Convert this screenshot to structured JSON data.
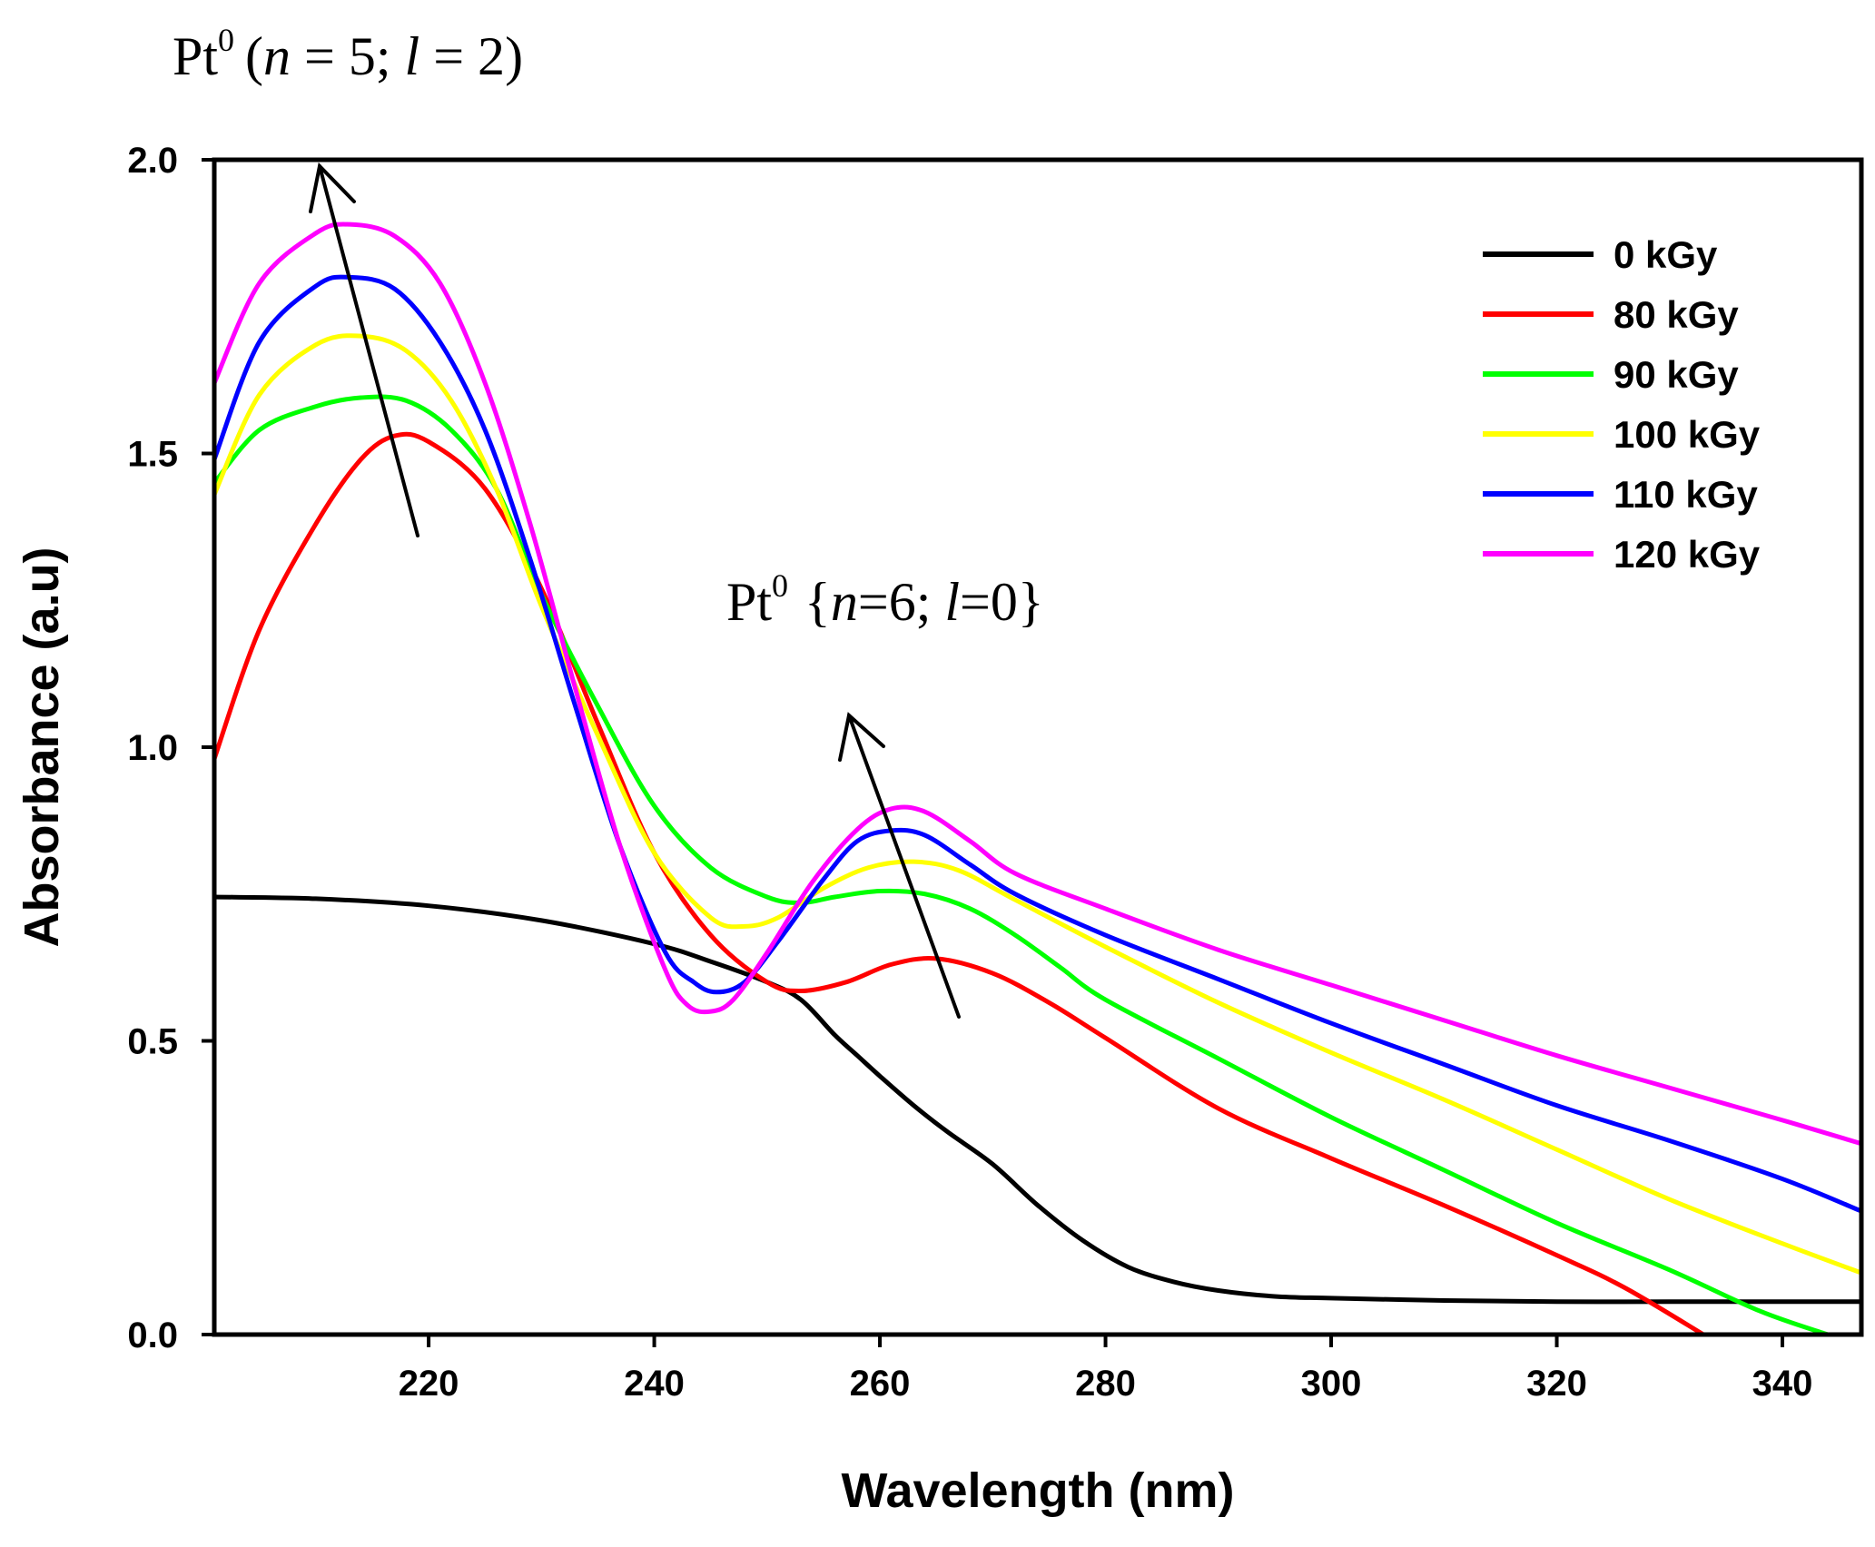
{
  "chart_data": {
    "type": "line",
    "title": "",
    "xlabel": "Wavelength (nm)",
    "ylabel": "Absorbance (a.u)",
    "xlim": [
      201,
      347
    ],
    "ylim": [
      0,
      2
    ],
    "xticks": [
      220,
      240,
      260,
      280,
      300,
      320,
      340
    ],
    "xtick_labels": [
      "220",
      "240",
      "260",
      "280",
      "300",
      "320",
      "340"
    ],
    "yticks": [
      0,
      0.5,
      1,
      1.5,
      2
    ],
    "ytick_labels": [
      "0.0",
      "0.5",
      "1.0",
      "1.5",
      "2.0"
    ],
    "grid": false,
    "legend_position": "top-right",
    "series": [
      {
        "name": "0 kGy",
        "color": "#000000",
        "points": [
          [
            201,
            0.745
          ],
          [
            210,
            0.742
          ],
          [
            220,
            0.73
          ],
          [
            230,
            0.705
          ],
          [
            240,
            0.665
          ],
          [
            245,
            0.635
          ],
          [
            250,
            0.6
          ],
          [
            253,
            0.57
          ],
          [
            256,
            0.51
          ],
          [
            258,
            0.475
          ],
          [
            260,
            0.44
          ],
          [
            263,
            0.39
          ],
          [
            266,
            0.345
          ],
          [
            270,
            0.29
          ],
          [
            274,
            0.22
          ],
          [
            278,
            0.16
          ],
          [
            282,
            0.115
          ],
          [
            286,
            0.09
          ],
          [
            290,
            0.075
          ],
          [
            295,
            0.065
          ],
          [
            300,
            0.062
          ],
          [
            310,
            0.058
          ],
          [
            320,
            0.056
          ],
          [
            330,
            0.056
          ],
          [
            340,
            0.056
          ],
          [
            347,
            0.056
          ]
        ]
      },
      {
        "name": "80 kGy",
        "color": "#ff0000",
        "points": [
          [
            201,
            0.98
          ],
          [
            205,
            1.2
          ],
          [
            210,
            1.38
          ],
          [
            214,
            1.49
          ],
          [
            217,
            1.53
          ],
          [
            220,
            1.52
          ],
          [
            225,
            1.44
          ],
          [
            230,
            1.27
          ],
          [
            235,
            1.04
          ],
          [
            240,
            0.82
          ],
          [
            245,
            0.68
          ],
          [
            250,
            0.6
          ],
          [
            253,
            0.585
          ],
          [
            257,
            0.6
          ],
          [
            261,
            0.63
          ],
          [
            265,
            0.64
          ],
          [
            270,
            0.615
          ],
          [
            275,
            0.565
          ],
          [
            280,
            0.505
          ],
          [
            290,
            0.385
          ],
          [
            300,
            0.3
          ],
          [
            310,
            0.22
          ],
          [
            320,
            0.135
          ],
          [
            326,
            0.08
          ],
          [
            333,
            0.0
          ]
        ]
      },
      {
        "name": "90 kGy",
        "color": "#00ff00",
        "points": [
          [
            201,
            1.45
          ],
          [
            205,
            1.54
          ],
          [
            210,
            1.58
          ],
          [
            214,
            1.595
          ],
          [
            218,
            1.59
          ],
          [
            222,
            1.54
          ],
          [
            226,
            1.44
          ],
          [
            230,
            1.26
          ],
          [
            235,
            1.07
          ],
          [
            240,
            0.9
          ],
          [
            245,
            0.795
          ],
          [
            250,
            0.745
          ],
          [
            253,
            0.735
          ],
          [
            256,
            0.745
          ],
          [
            260,
            0.755
          ],
          [
            264,
            0.75
          ],
          [
            268,
            0.725
          ],
          [
            272,
            0.68
          ],
          [
            276,
            0.625
          ],
          [
            280,
            0.57
          ],
          [
            290,
            0.47
          ],
          [
            300,
            0.37
          ],
          [
            310,
            0.28
          ],
          [
            320,
            0.19
          ],
          [
            330,
            0.11
          ],
          [
            338,
            0.04
          ],
          [
            344,
            0.0
          ]
        ]
      },
      {
        "name": "100 kGy",
        "color": "#ffff00",
        "points": [
          [
            201,
            1.43
          ],
          [
            205,
            1.6
          ],
          [
            210,
            1.685
          ],
          [
            214,
            1.7
          ],
          [
            218,
            1.675
          ],
          [
            222,
            1.59
          ],
          [
            226,
            1.44
          ],
          [
            230,
            1.24
          ],
          [
            235,
            1.02
          ],
          [
            240,
            0.82
          ],
          [
            245,
            0.71
          ],
          [
            248,
            0.695
          ],
          [
            251,
            0.71
          ],
          [
            255,
            0.76
          ],
          [
            259,
            0.795
          ],
          [
            263,
            0.805
          ],
          [
            267,
            0.79
          ],
          [
            272,
            0.74
          ],
          [
            280,
            0.66
          ],
          [
            290,
            0.565
          ],
          [
            300,
            0.48
          ],
          [
            310,
            0.4
          ],
          [
            320,
            0.315
          ],
          [
            330,
            0.23
          ],
          [
            340,
            0.155
          ],
          [
            347,
            0.105
          ]
        ]
      },
      {
        "name": "110 kGy",
        "color": "#0000ff",
        "points": [
          [
            201,
            1.49
          ],
          [
            205,
            1.69
          ],
          [
            210,
            1.785
          ],
          [
            213,
            1.8
          ],
          [
            217,
            1.78
          ],
          [
            221,
            1.69
          ],
          [
            225,
            1.54
          ],
          [
            229,
            1.32
          ],
          [
            233,
            1.07
          ],
          [
            237,
            0.83
          ],
          [
            241,
            0.65
          ],
          [
            243.5,
            0.6
          ],
          [
            245.5,
            0.583
          ],
          [
            248,
            0.6
          ],
          [
            251,
            0.67
          ],
          [
            255,
            0.775
          ],
          [
            258,
            0.84
          ],
          [
            261,
            0.858
          ],
          [
            264,
            0.85
          ],
          [
            268,
            0.8
          ],
          [
            272,
            0.75
          ],
          [
            280,
            0.68
          ],
          [
            290,
            0.605
          ],
          [
            300,
            0.53
          ],
          [
            310,
            0.46
          ],
          [
            320,
            0.39
          ],
          [
            330,
            0.33
          ],
          [
            340,
            0.265
          ],
          [
            347,
            0.21
          ]
        ]
      },
      {
        "name": "120 kGy",
        "color": "#ff00ff",
        "points": [
          [
            201,
            1.62
          ],
          [
            205,
            1.79
          ],
          [
            210,
            1.875
          ],
          [
            213,
            1.89
          ],
          [
            217,
            1.87
          ],
          [
            221,
            1.79
          ],
          [
            225,
            1.62
          ],
          [
            229,
            1.38
          ],
          [
            233,
            1.1
          ],
          [
            237,
            0.83
          ],
          [
            241,
            0.62
          ],
          [
            243,
            0.56
          ],
          [
            245,
            0.55
          ],
          [
            247,
            0.57
          ],
          [
            250,
            0.65
          ],
          [
            254,
            0.77
          ],
          [
            258,
            0.86
          ],
          [
            261,
            0.895
          ],
          [
            264,
            0.89
          ],
          [
            268,
            0.84
          ],
          [
            272,
            0.785
          ],
          [
            280,
            0.725
          ],
          [
            290,
            0.655
          ],
          [
            300,
            0.595
          ],
          [
            310,
            0.535
          ],
          [
            320,
            0.475
          ],
          [
            330,
            0.42
          ],
          [
            340,
            0.365
          ],
          [
            347,
            0.325
          ]
        ]
      }
    ],
    "annotations": [
      {
        "base": "Pt",
        "sup": "0",
        "open": "(",
        "n_var": "n",
        "n_eq": " = 5; ",
        "l_var": "l",
        "l_eq": " = 2",
        "close": ")"
      },
      {
        "base": "Pt",
        "sup": "0",
        "open": "{",
        "n_var": "n",
        "n_eq": "=6; ",
        "l_var": "l",
        "l_eq": "=0",
        "close": "}"
      }
    ]
  }
}
